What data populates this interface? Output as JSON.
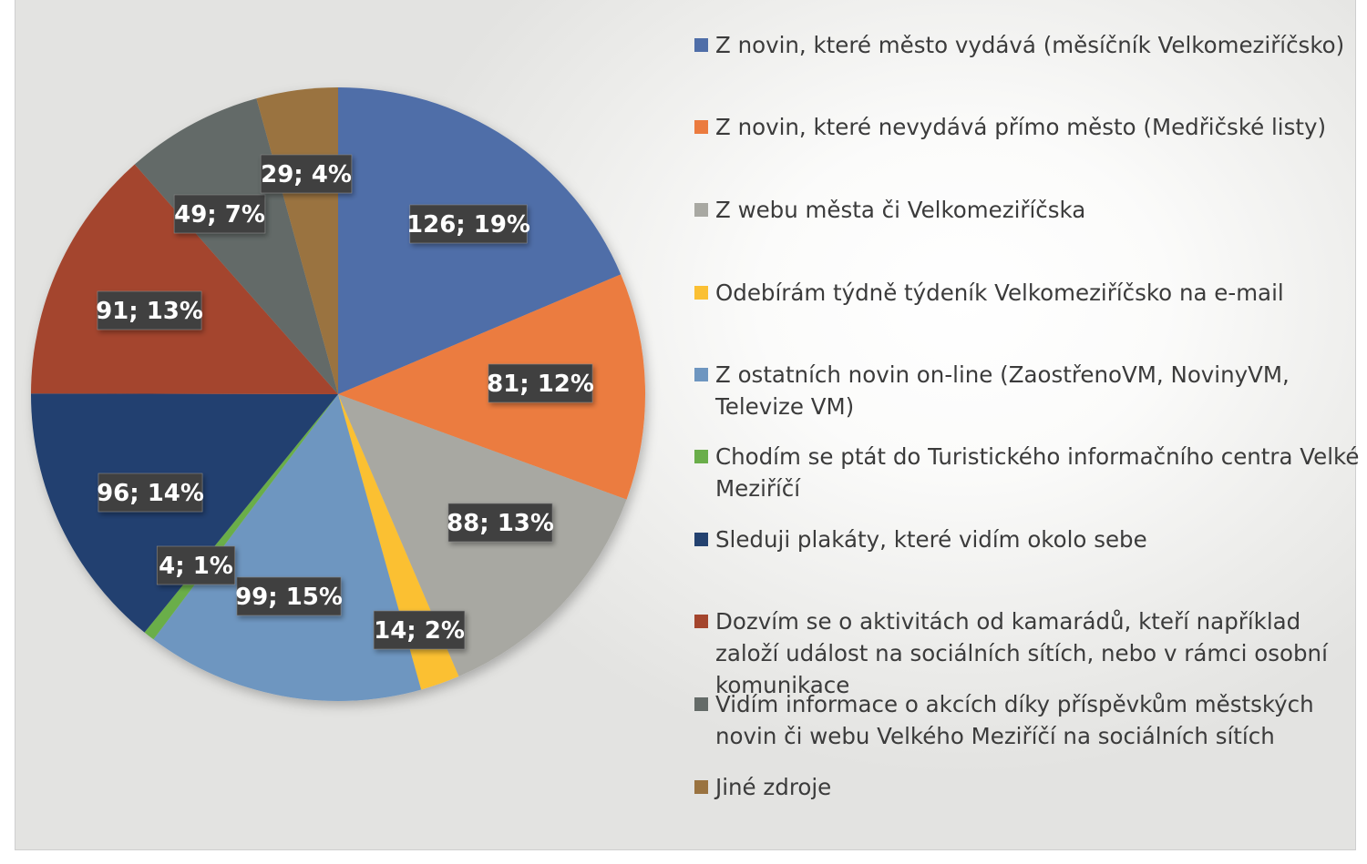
{
  "chart_data": {
    "type": "pie",
    "slices": [
      {
        "label": "Z novin, které město vydává (měsíčník Velkomeziříčsko)",
        "value": 126,
        "percent": "19%",
        "color": "#4F6EA8"
      },
      {
        "label": "Z novin, které nevydává přímo město (Medřičské listy)",
        "value": 81,
        "percent": "12%",
        "color": "#EB7B3F"
      },
      {
        "label": "Z webu města či Velkomeziříčska",
        "value": 88,
        "percent": "13%",
        "color": "#A8A8A2"
      },
      {
        "label": "Odebírám týdně týdeník Velkomeziříčsko na e-mail",
        "value": 14,
        "percent": "2%",
        "color": "#FBC033"
      },
      {
        "label": "Z ostatních novin on-line (ZaostřenoVM, NovinyVM, Televize VM)",
        "value": 99,
        "percent": "15%",
        "color": "#6E96C0"
      },
      {
        "label": "Chodím se ptát do Turistického informačního centra Velké Meziříčí",
        "value": 4,
        "percent": "1%",
        "color": "#6AAE4A"
      },
      {
        "label": "Sleduji plakáty, které vidím okolo sebe",
        "value": 96,
        "percent": "14%",
        "color": "#23416F"
      },
      {
        "label": "Dozvím se o aktivitách od kamarádů, kteří například založí událost na sociálních sítích, nebo v rámci osobní komunikace",
        "value": 91,
        "percent": "13%",
        "color": "#A4452D"
      },
      {
        "label": "Vidím informace o akcích díky příspěvkům městských novin či webu Velkého Meziříčí na sociálních sítích",
        "value": 49,
        "percent": "7%",
        "color": "#646B68"
      },
      {
        "label": "Jiné zdroje",
        "value": 29,
        "percent": "4%",
        "color": "#9A7340"
      }
    ],
    "data_labels": [
      "126; 19%",
      "81; 12%",
      "88; 13%",
      "14; 2%",
      "99; 15%",
      "4; 1%",
      "96; 14%",
      "91; 13%",
      "49; 7%",
      "29; 4%"
    ],
    "legend_position": "right"
  }
}
